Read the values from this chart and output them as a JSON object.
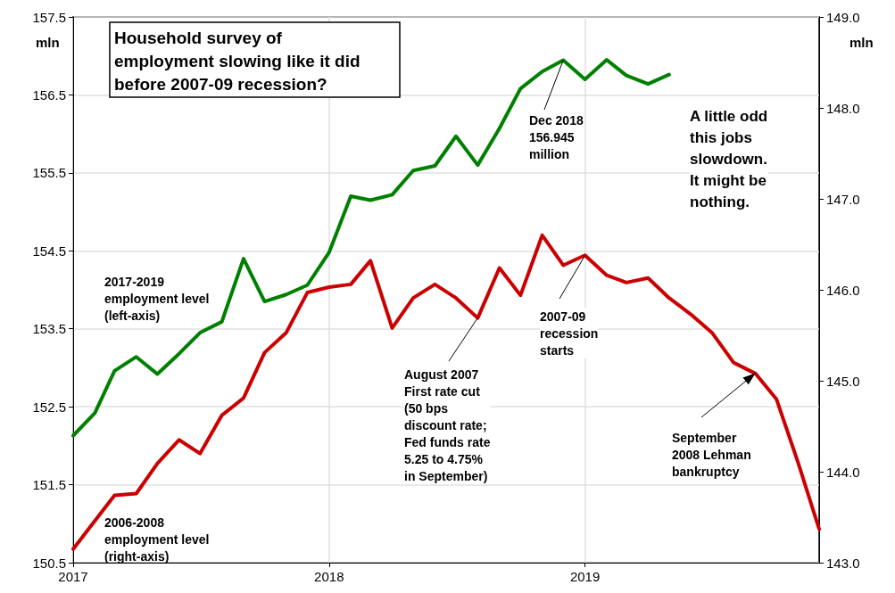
{
  "chart_data": {
    "type": "line",
    "title": "Household survey of\nemployment slowing like it did\nbefore 2007-09 recession?",
    "ylabel": "mln",
    "y2label": "mln",
    "xlim": [
      "2017-01",
      "2019-12"
    ],
    "xticks": [
      {
        "value": "2017-01",
        "label": "2017"
      },
      {
        "value": "2018-01",
        "label": "2018"
      },
      {
        "value": "2019-01",
        "label": "2019"
      }
    ],
    "ylim": [
      150.5,
      157.5
    ],
    "yticks": [
      150.5,
      151.5,
      152.5,
      153.5,
      154.5,
      155.5,
      156.5,
      157.5
    ],
    "y2lim": [
      143,
      149
    ],
    "y2ticks": [
      {
        "value": 143,
        "label": "143.0"
      },
      {
        "value": 144,
        "label": "144.0"
      },
      {
        "value": 145,
        "label": "145.0"
      },
      {
        "value": 146,
        "label": "146.0"
      },
      {
        "value": 147,
        "label": "147.0"
      },
      {
        "value": 148,
        "label": "148.0"
      },
      {
        "value": 149,
        "label": "149.0"
      }
    ],
    "grid": true,
    "legend": false,
    "marker": "none",
    "line_style": "solid",
    "series": [
      {
        "name": "2017-2019\nemployment level\n(left-axis)",
        "color": "#008000",
        "x": [
          "2017-01",
          "2017-02",
          "2017-03",
          "2017-04",
          "2017-05",
          "2017-06",
          "2017-07",
          "2017-08",
          "2017-09",
          "2017-10",
          "2017-11",
          "2017-12",
          "2018-01",
          "2018-02",
          "2018-03",
          "2018-04",
          "2018-05",
          "2018-06",
          "2018-07",
          "2018-08",
          "2018-09",
          "2018-10",
          "2018-11",
          "2018-12",
          "2019-01",
          "2019-02",
          "2019-03",
          "2019-04",
          "2019-05"
        ],
        "values": [
          152.13,
          152.42,
          152.96,
          153.14,
          152.92,
          153.18,
          153.45,
          153.59,
          154.4,
          153.85,
          153.94,
          154.06,
          154.48,
          155.2,
          155.15,
          155.22,
          155.53,
          155.59,
          155.97,
          155.6,
          156.07,
          156.58,
          156.8,
          156.945,
          156.7,
          156.95,
          156.75,
          156.64,
          156.76
        ]
      },
      {
        "name": "2006-2008\nemployment level\n(right-axis)",
        "color": "#cc0000",
        "axis": "y2",
        "x": [
          "2017-01",
          "2017-02",
          "2017-03",
          "2017-04",
          "2017-05",
          "2017-06",
          "2017-07",
          "2017-08",
          "2017-09",
          "2017-10",
          "2017-11",
          "2017-12",
          "2018-01",
          "2018-02",
          "2018-03",
          "2018-04",
          "2018-05",
          "2018-06",
          "2018-07",
          "2018-08",
          "2018-09",
          "2018-10",
          "2018-11",
          "2018-12",
          "2019-01",
          "2019-02",
          "2019-03",
          "2019-04",
          "2019-05",
          "2019-06",
          "2019-07",
          "2019-08",
          "2019-09",
          "2019-10",
          "2019-11",
          "2019-12"
        ],
        "values": [
          143.15,
          143.46,
          143.74,
          143.76,
          144.09,
          144.35,
          144.2,
          144.62,
          144.81,
          145.31,
          145.53,
          145.97,
          146.03,
          146.06,
          146.32,
          145.58,
          145.91,
          146.06,
          145.91,
          145.69,
          146.24,
          145.94,
          146.6,
          146.27,
          146.38,
          146.16,
          146.08,
          146.13,
          145.91,
          145.73,
          145.53,
          145.2,
          145.08,
          144.8,
          144.1,
          143.37
        ]
      }
    ],
    "annotations": [
      "A little odd\nthis jobs\nslowdown.\nIt might be\nnothing.",
      {
        "text": "Dec 2018\n156.945\nmillion",
        "x": "2018-12",
        "y": 156.945
      },
      {
        "text": "August 2007\nFirst rate cut\n(50 bps\ndiscount rate;\nFed funds rate\n5.25 to 4.75%\nin September)",
        "x": "2018-08",
        "y": 153.64
      },
      {
        "text": "2007-09\nrecession\nstarts",
        "x": "2019-01",
        "y": 154.44
      },
      {
        "text": "September\n2008 Lehman\nbankruptcy",
        "x": "2019-09",
        "y": 152.93
      }
    ]
  }
}
